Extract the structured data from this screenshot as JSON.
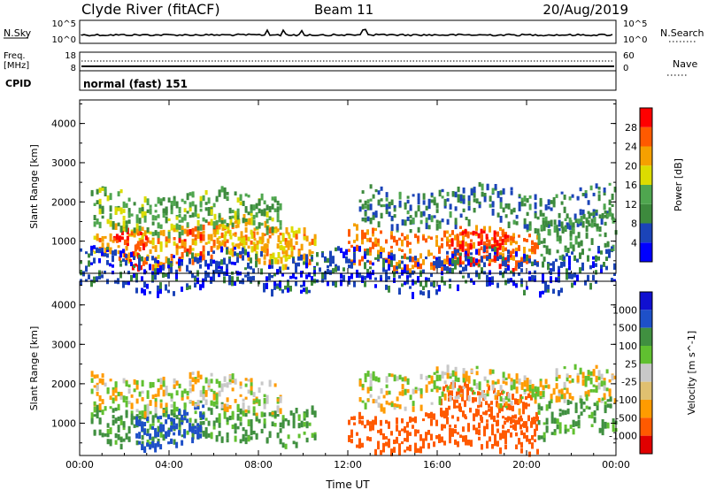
{
  "header": {
    "station": "Clyde River (fitACF)",
    "beam": "Beam 11",
    "date": "20/Aug/2019"
  },
  "strips": {
    "nsky": {
      "label": "N.Sky",
      "ticks_left": [
        "10^5",
        "10^0"
      ],
      "ticks_right": [
        "10^5",
        "10^0"
      ],
      "right_label": "N.Search"
    },
    "freq": {
      "label_line1": "Freq.",
      "label_line2": "[MHz]",
      "ticks_left": [
        "18",
        "8"
      ],
      "ticks_right": [
        "60",
        "0"
      ],
      "right_label": "Nave"
    },
    "cpid": {
      "label": "CPID",
      "text": "normal (fast) 151"
    }
  },
  "colors": {
    "power_scale": [
      "#0000ff",
      "#1b44b8",
      "#3d8a3d",
      "#4fa64f",
      "#dcdc00",
      "#f5a000",
      "#ff5a00",
      "#ff0000"
    ],
    "velocity_scale": [
      "#e00000",
      "#ff5a00",
      "#ff9b00",
      "#e0c070",
      "#c8c8c8",
      "#60c030",
      "#409040",
      "#1e50c8",
      "#1010d0"
    ],
    "ground_scatter": "#bdbdbd"
  },
  "chart_data": [
    {
      "type": "heatmap",
      "title": "Power",
      "ylabel": "Slant Range [km]",
      "xlabel": "Time UT",
      "ylim": [
        180,
        4600
      ],
      "xlim": [
        0,
        24
      ],
      "xticks": [
        "00:00",
        "04:00",
        "08:00",
        "12:00",
        "16:00",
        "20:00",
        "00:00"
      ],
      "yticks": [
        "1000",
        "2000",
        "3000",
        "4000"
      ],
      "colorbar": {
        "label": "Power [dB]",
        "ticks": [
          "4",
          "8",
          "12",
          "16",
          "20",
          "24",
          "28"
        ],
        "range": [
          0,
          32
        ]
      },
      "scatter_bands": [
        {
          "t_start": 0.5,
          "t_end": 10.5,
          "range_center": 1000,
          "value": 22
        },
        {
          "t_start": 1.5,
          "t_end": 3.0,
          "range_center": 900,
          "value": 29
        },
        {
          "t_start": 4.3,
          "t_end": 5.5,
          "range_center": 900,
          "value": 27
        },
        {
          "t_start": 6.0,
          "t_end": 9.5,
          "range_center": 1150,
          "value": 20
        },
        {
          "t_start": 0.5,
          "t_end": 9.0,
          "range_center": 1800,
          "value": 13
        },
        {
          "t_start": 12.0,
          "t_end": 20.5,
          "range_center": 850,
          "value": 24
        },
        {
          "t_start": 16.5,
          "t_end": 19.5,
          "range_center": 750,
          "value": 29
        },
        {
          "t_start": 12.5,
          "t_end": 24.0,
          "range_center": 1900,
          "value": 9
        },
        {
          "t_start": 20.5,
          "t_end": 24.0,
          "range_center": 1200,
          "value": 12
        },
        {
          "t_start": 0.0,
          "t_end": 24.0,
          "range_center": 300,
          "value": 6
        }
      ]
    },
    {
      "type": "heatmap",
      "title": "Velocity",
      "ylabel": "Slant Range [km]",
      "xlabel": "Time UT",
      "ylim": [
        180,
        4600
      ],
      "xlim": [
        0,
        24
      ],
      "xticks": [
        "00:00",
        "04:00",
        "08:00",
        "12:00",
        "16:00",
        "20:00",
        "00:00"
      ],
      "yticks": [
        "1000",
        "2000",
        "3000",
        "4000"
      ],
      "colorbar": {
        "label": "Velocity [m s^-1]",
        "ticks": [
          "1000",
          "500",
          "100",
          "25",
          "-25",
          "-100",
          "-500",
          "-1000"
        ],
        "range": [
          -1000,
          1000
        ]
      },
      "scatter_bands": [
        {
          "t_start": 0.5,
          "t_end": 10.5,
          "range_center": 1000,
          "value": 150
        },
        {
          "t_start": 2.5,
          "t_end": 5.5,
          "range_center": 900,
          "value": 800
        },
        {
          "t_start": 0.5,
          "t_end": 9.0,
          "range_center": 1800,
          "value": 0
        },
        {
          "t_start": 12.0,
          "t_end": 20.5,
          "range_center": 850,
          "value": -200
        },
        {
          "t_start": 16.0,
          "t_end": 20.5,
          "range_center": 1500,
          "value": -300
        },
        {
          "t_start": 12.5,
          "t_end": 24.0,
          "range_center": 1950,
          "value": 0
        },
        {
          "t_start": 20.5,
          "t_end": 24.0,
          "range_center": 1200,
          "value": 120
        }
      ]
    }
  ]
}
